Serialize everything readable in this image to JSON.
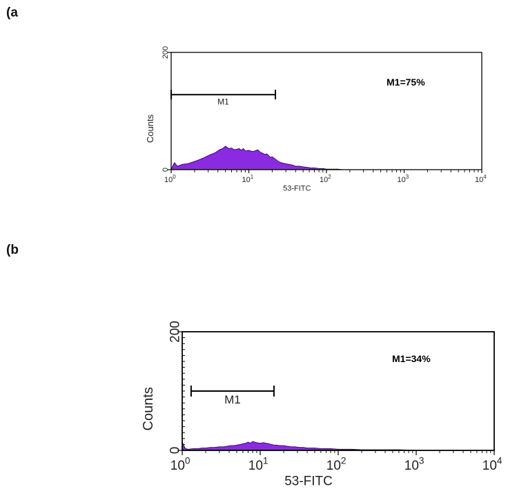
{
  "figure": {
    "panel_a_label": "(a",
    "panel_b_label": "(b"
  },
  "colors": {
    "fill": "#8a2be2",
    "outline": "#1a1a1a",
    "frame": "#000000"
  },
  "chart_data": [
    {
      "type": "area",
      "panel": "(a",
      "xlabel": "53-FITC",
      "ylabel": "Counts",
      "xscale": "log",
      "xlim": [
        1,
        10000
      ],
      "ylim": [
        0,
        200
      ],
      "yticks": [
        "0",
        "200"
      ],
      "xticks": [
        {
          "base": "10",
          "exp": "0",
          "value": 1
        },
        {
          "base": "10",
          "exp": "1",
          "value": 10
        },
        {
          "base": "10",
          "exp": "2",
          "value": 100
        },
        {
          "base": "10",
          "exp": "3",
          "value": 1000
        },
        {
          "base": "10",
          "exp": "4",
          "value": 10000
        }
      ],
      "marker": {
        "label": "M1",
        "x_start": 1,
        "x_end": 22,
        "y": 128
      },
      "annotation": "M1=75%",
      "x": [
        1,
        1.1,
        1.2,
        1.4,
        1.6,
        1.8,
        2,
        2.3,
        2.6,
        3,
        3.4,
        3.8,
        4.2,
        4.6,
        5,
        5.5,
        6,
        6.5,
        7,
        7.5,
        8,
        8.5,
        9,
        10,
        11,
        12,
        13,
        14,
        15,
        16,
        17,
        18,
        19,
        20,
        22,
        24,
        26,
        28,
        30,
        33,
        36,
        40,
        45,
        50,
        56,
        63,
        70,
        80,
        90,
        100,
        110,
        125,
        140,
        160,
        180,
        200,
        1000,
        10000
      ],
      "y": [
        1,
        12,
        6,
        9,
        10,
        12,
        14,
        17,
        20,
        24,
        27,
        30,
        34,
        36,
        40,
        36,
        37,
        34,
        35,
        36,
        33,
        36,
        32,
        33,
        31,
        32,
        34,
        30,
        28,
        26,
        27,
        24,
        21,
        22,
        18,
        14,
        12,
        11,
        10,
        9,
        8,
        6,
        6,
        5,
        4,
        3,
        3,
        2,
        2,
        1,
        1,
        1,
        1,
        0,
        0,
        0,
        0,
        0
      ]
    },
    {
      "type": "area",
      "panel": "(b",
      "xlabel": "53-FITC",
      "ylabel": "Counts",
      "xscale": "log",
      "xlim": [
        1,
        10000
      ],
      "ylim": [
        0,
        200
      ],
      "yticks": [
        "0",
        "200"
      ],
      "xticks": [
        {
          "base": "10",
          "exp": "0",
          "value": 1
        },
        {
          "base": "10",
          "exp": "1",
          "value": 10
        },
        {
          "base": "10",
          "exp": "2",
          "value": 100
        },
        {
          "base": "10",
          "exp": "3",
          "value": 1000
        },
        {
          "base": "10",
          "exp": "4",
          "value": 10000
        }
      ],
      "marker": {
        "label": "M1",
        "x_start": 1.3,
        "x_end": 15,
        "y": 100
      },
      "annotation": "M1=34%",
      "x": [
        1,
        1.05,
        1.1,
        1.2,
        1.4,
        1.6,
        1.8,
        2,
        2.3,
        2.6,
        3,
        3.4,
        3.8,
        4.2,
        4.6,
        5,
        5.5,
        6,
        6.5,
        7,
        7.5,
        8,
        9,
        10,
        11,
        12,
        13,
        14,
        15,
        16,
        18,
        20,
        22,
        25,
        28,
        32,
        36,
        40,
        45,
        50,
        60,
        70,
        80,
        100,
        120,
        150,
        200,
        300,
        600,
        1000,
        10000
      ],
      "y": [
        14,
        8,
        3,
        2,
        3,
        3,
        4,
        4,
        5,
        5,
        6,
        6,
        7,
        8,
        8,
        9,
        10,
        11,
        12,
        14,
        12,
        15,
        13,
        12,
        13,
        12,
        11,
        10,
        9,
        9,
        8,
        8,
        7,
        6,
        6,
        5,
        5,
        4,
        4,
        4,
        3,
        3,
        3,
        2,
        2,
        2,
        1,
        1,
        1,
        0,
        0
      ]
    }
  ]
}
